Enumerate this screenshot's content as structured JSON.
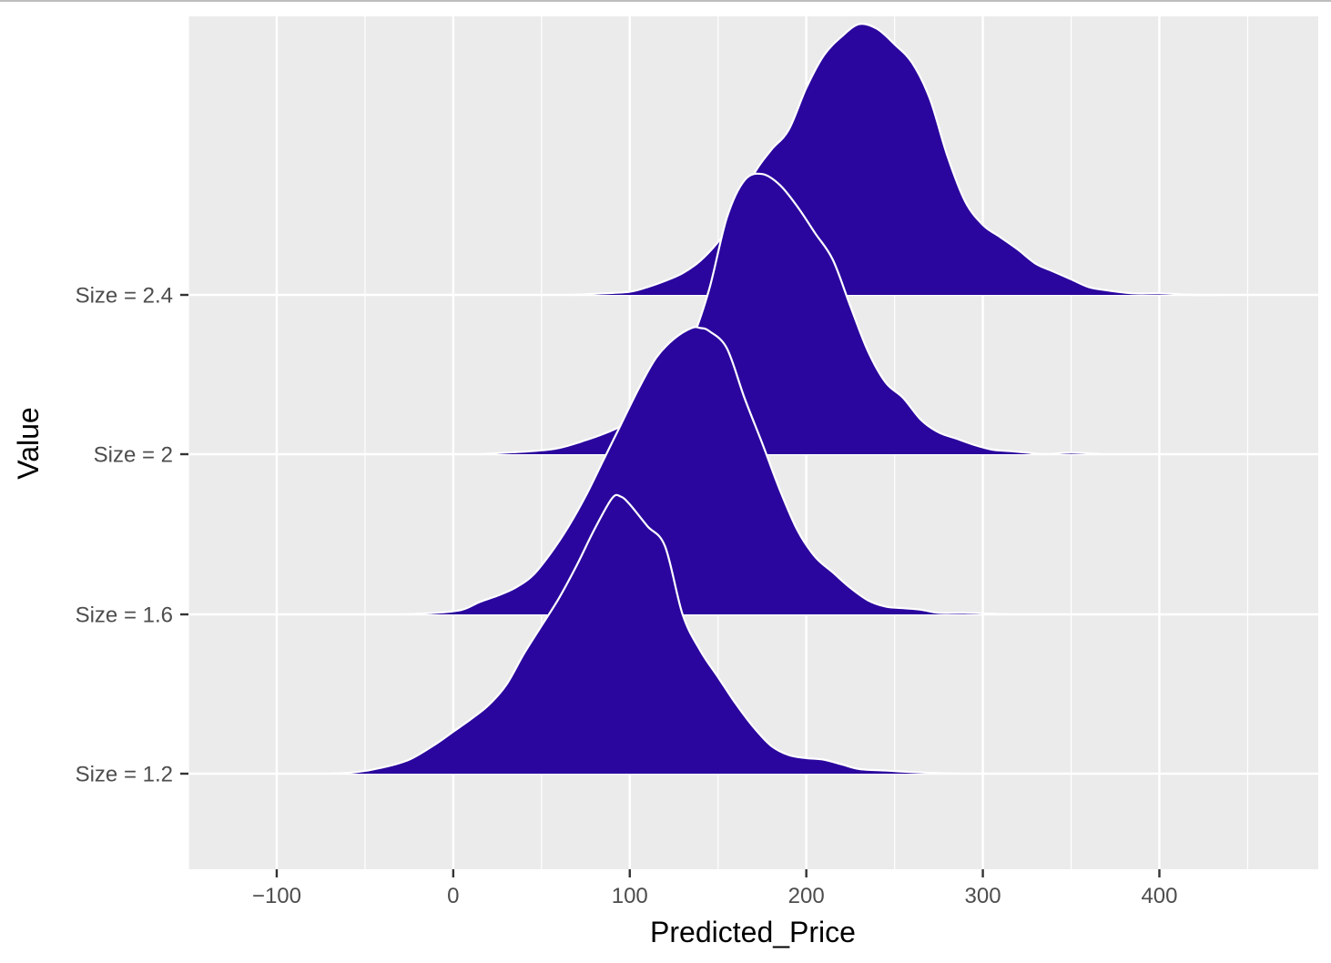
{
  "chart_data": {
    "type": "ridgeline",
    "title": "",
    "xlabel": "Predicted_Price",
    "ylabel": "Value",
    "xlim": [
      -150,
      490
    ],
    "x_ticks": [
      -100,
      0,
      100,
      200,
      300,
      400
    ],
    "x_tick_labels": [
      "−100",
      "0",
      "100",
      "200",
      "300",
      "400"
    ],
    "x_minor_ticks": [
      -150,
      -50,
      50,
      150,
      250,
      350,
      450
    ],
    "categories": [
      "Size = 1.2",
      "Size = 1.6",
      "Size = 2",
      "Size = 2.4"
    ],
    "panel_color": "#ebebeb",
    "grid_color": "#ffffff",
    "fill_color": "#2a069e",
    "outline_color": "#ffffff",
    "series": [
      {
        "category": "Size = 1.2",
        "x": [
          -70,
          -55,
          -40,
          -25,
          -10,
          0,
          10,
          20,
          30,
          40,
          50,
          60,
          70,
          80,
          90,
          95,
          100,
          110,
          120,
          130,
          140,
          150,
          160,
          170,
          180,
          190,
          200,
          210,
          220,
          230,
          245,
          260,
          285
        ],
        "density": [
          0.0,
          0.01,
          0.04,
          0.09,
          0.19,
          0.27,
          0.35,
          0.44,
          0.57,
          0.77,
          0.95,
          1.13,
          1.34,
          1.57,
          1.77,
          1.78,
          1.73,
          1.59,
          1.46,
          1.02,
          0.79,
          0.62,
          0.45,
          0.3,
          0.18,
          0.12,
          0.1,
          0.09,
          0.06,
          0.03,
          0.02,
          0.01,
          0.0
        ]
      },
      {
        "category": "Size = 1.6",
        "x": [
          -30,
          -10,
          5,
          15,
          25,
          35,
          45,
          55,
          65,
          75,
          85,
          95,
          105,
          115,
          125,
          135,
          140,
          145,
          155,
          165,
          175,
          185,
          195,
          205,
          215,
          225,
          235,
          245,
          255,
          265,
          275,
          290,
          315
        ],
        "density": [
          0.0,
          0.01,
          0.03,
          0.08,
          0.12,
          0.17,
          0.25,
          0.39,
          0.56,
          0.76,
          0.99,
          1.22,
          1.45,
          1.65,
          1.77,
          1.84,
          1.84,
          1.82,
          1.71,
          1.39,
          1.1,
          0.8,
          0.54,
          0.37,
          0.27,
          0.17,
          0.09,
          0.05,
          0.04,
          0.03,
          0.01,
          0.01,
          0.0
        ]
      },
      {
        "category": "Size = 2",
        "x": [
          15,
          30,
          45,
          60,
          75,
          85,
          95,
          105,
          115,
          125,
          135,
          145,
          155,
          165,
          175,
          185,
          195,
          205,
          215,
          225,
          235,
          245,
          255,
          265,
          275,
          285,
          295,
          305,
          315,
          325,
          335,
          350,
          368
        ],
        "density": [
          0.0,
          0.01,
          0.02,
          0.04,
          0.09,
          0.13,
          0.18,
          0.25,
          0.36,
          0.53,
          0.73,
          1.06,
          1.52,
          1.76,
          1.8,
          1.73,
          1.59,
          1.42,
          1.25,
          0.95,
          0.66,
          0.46,
          0.36,
          0.22,
          0.14,
          0.1,
          0.06,
          0.03,
          0.02,
          0.01,
          0.0,
          0.01,
          0.0
        ]
      },
      {
        "category": "Size = 2.4",
        "x": [
          68,
          85,
          100,
          110,
          120,
          130,
          140,
          150,
          160,
          170,
          180,
          190,
          200,
          210,
          220,
          230,
          240,
          250,
          260,
          270,
          280,
          290,
          300,
          310,
          320,
          330,
          340,
          350,
          360,
          370,
          385,
          400,
          420,
          435
        ],
        "density": [
          0.0,
          0.01,
          0.02,
          0.05,
          0.09,
          0.14,
          0.22,
          0.34,
          0.5,
          0.77,
          0.93,
          1.06,
          1.33,
          1.54,
          1.66,
          1.74,
          1.71,
          1.61,
          1.49,
          1.26,
          0.89,
          0.6,
          0.45,
          0.37,
          0.29,
          0.2,
          0.15,
          0.1,
          0.05,
          0.03,
          0.01,
          0.01,
          0.0,
          0.0
        ]
      }
    ]
  }
}
